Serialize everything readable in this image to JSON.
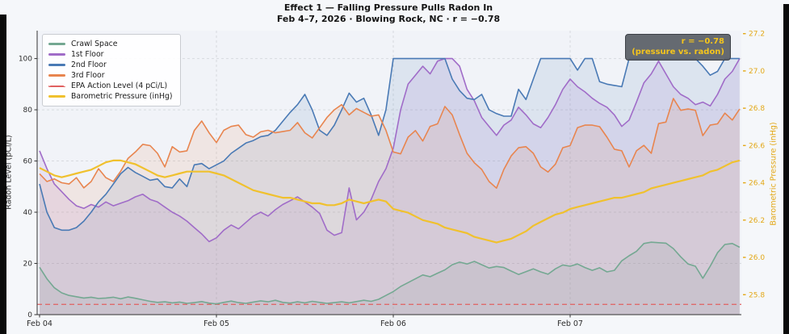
{
  "chart_data": {
    "type": "line",
    "title": "Effect 1 — Falling Pressure Pulls Radon In",
    "subtitle": "Feb 4–7, 2026  ·  Blowing Rock, NC  ·  r = −0.78",
    "ylabel_left": "Radon Level (pCi/L)",
    "ylabel_right": "Barometric Pressure (inHg)",
    "x_unit": "hours since Feb 4 00:00 (hourly samples)",
    "x_start_hour": 0,
    "x_step_hours": 1,
    "n_points": 96,
    "axes": {
      "left": {
        "ticks": [
          0,
          20,
          40,
          60,
          80,
          100
        ],
        "range": [
          0,
          110.9
        ]
      },
      "right": {
        "ticks": [
          25.8,
          26.0,
          26.2,
          26.4,
          26.6,
          26.8,
          27.0,
          27.2
        ],
        "range": [
          25.693,
          27.216
        ]
      },
      "x": {
        "ticks": [
          {
            "label": "Feb 04",
            "hour": 0
          },
          {
            "label": "Feb 05",
            "hour": 24
          },
          {
            "label": "Feb 06",
            "hour": 48
          },
          {
            "label": "Feb 07",
            "hour": 72
          }
        ],
        "range_hours": [
          0,
          95
        ]
      },
      "grid": true,
      "legend_position": "upper left"
    },
    "epa_action_level": {
      "label": "EPA Action Level (4 pCi/L)",
      "value": 4,
      "color": "#e06060"
    },
    "series": [
      {
        "name": "Crawl Space",
        "axis": "left",
        "color": "#74a892",
        "fill_opacity": 0.13,
        "values": [
          18.5,
          14,
          10.5,
          8.5,
          7.5,
          7,
          6.5,
          6.8,
          6.3,
          6.5,
          6.8,
          6.2,
          6.9,
          6.4,
          5.8,
          5.2,
          4.8,
          5,
          4.6,
          4.9,
          4.4,
          4.7,
          5.1,
          4.5,
          4.2,
          4.8,
          5.3,
          4.7,
          4.4,
          4.9,
          5.4,
          5,
          5.6,
          4.8,
          4.5,
          5,
          4.6,
          5.2,
          4.8,
          4.4,
          4.7,
          5,
          4.6,
          5.1,
          5.6,
          5.2,
          6,
          7.5,
          9,
          11,
          12.5,
          14,
          15.5,
          14.8,
          16.2,
          17.5,
          19.5,
          20.5,
          19.8,
          20.8,
          19.5,
          18.2,
          18.8,
          18.4,
          17,
          15.7,
          16.8,
          17.9,
          16.7,
          15.8,
          17.9,
          19.4,
          18.9,
          19.8,
          18.4,
          17.3,
          18.3,
          16.7,
          17.3,
          21,
          23,
          24.7,
          27.8,
          28.3,
          28.1,
          27.9,
          25.8,
          22.6,
          19.8,
          18.9,
          14.2,
          18.9,
          24.2,
          27.4,
          27.8,
          26.3
        ]
      },
      {
        "name": "1st Floor",
        "axis": "left",
        "color": "#a06cc8",
        "fill_opacity": 0.13,
        "values": [
          64,
          57,
          51,
          48,
          45,
          42.5,
          41.5,
          43,
          42,
          44,
          42.5,
          43.5,
          44.5,
          46,
          47,
          45,
          44,
          42,
          40,
          38.5,
          36.5,
          34,
          31.5,
          28.5,
          30,
          33,
          35,
          33.5,
          36,
          38.5,
          40,
          38.5,
          41,
          43,
          44.5,
          46,
          44,
          42,
          39.5,
          33,
          31,
          32,
          49.5,
          37,
          40,
          45,
          52,
          57,
          65,
          80,
          90,
          93.5,
          97,
          94,
          99,
          100,
          100,
          97,
          88,
          83.5,
          77,
          73.5,
          70,
          74,
          76,
          81,
          78,
          74.5,
          73,
          77,
          82,
          88,
          92,
          89,
          87,
          84.5,
          82.5,
          81,
          78,
          73.5,
          76,
          83,
          90.5,
          94,
          99,
          94,
          89,
          86,
          84.5,
          82,
          83,
          81.5,
          86,
          92,
          95,
          100
        ]
      },
      {
        "name": "2nd Floor",
        "axis": "left",
        "color": "#4a7ab5",
        "fill_opacity": 0.12,
        "values": [
          51,
          40,
          34,
          33,
          33,
          34,
          36.5,
          40,
          44,
          47,
          51,
          55,
          57.5,
          55.5,
          54,
          52.5,
          53,
          50,
          49.5,
          53,
          50,
          58.5,
          59,
          57,
          58.5,
          60,
          63,
          65,
          67,
          68,
          69.5,
          70,
          72,
          75.5,
          79,
          82,
          86,
          80,
          72,
          70,
          74,
          80,
          86.5,
          83,
          84.5,
          78,
          70,
          80,
          100,
          100,
          100,
          100,
          100,
          100,
          100,
          100,
          92,
          87.5,
          84.5,
          84,
          86,
          80,
          78.5,
          77.5,
          77.5,
          88,
          84,
          92,
          100,
          100,
          100,
          100,
          100,
          95.5,
          100,
          100,
          91,
          90,
          89.5,
          89,
          100,
          100,
          100,
          100,
          100,
          100,
          100,
          100,
          100,
          100,
          97,
          93.5,
          95,
          100,
          100,
          100
        ]
      },
      {
        "name": "3rd Floor",
        "axis": "left",
        "color": "#e8854f",
        "fill_opacity": 0.12,
        "values": [
          55,
          52,
          53,
          51.5,
          51,
          53.5,
          49.5,
          52,
          57,
          53.5,
          52,
          56,
          61,
          63.5,
          66.5,
          66,
          63,
          57.7,
          65.6,
          63.5,
          64,
          71.9,
          75.6,
          71,
          67.2,
          72,
          73.5,
          74,
          70.3,
          69.3,
          71.4,
          72,
          71,
          71.5,
          72,
          75,
          71,
          69,
          73,
          77,
          80,
          82,
          78,
          80.5,
          79,
          77.5,
          78,
          72,
          63.5,
          62.8,
          69.3,
          71.9,
          67.8,
          73.5,
          74.5,
          81.3,
          78,
          70.3,
          63,
          59.3,
          56.7,
          52,
          49.4,
          56.7,
          62,
          65.2,
          65.6,
          63,
          57.7,
          55.7,
          58.8,
          65.2,
          66,
          73,
          74,
          74,
          73.4,
          69.3,
          64.6,
          64,
          57.7,
          64,
          66.1,
          63,
          74.6,
          75.2,
          84.4,
          79.8,
          80.3,
          79.8,
          69.9,
          74,
          74.5,
          78.7,
          76,
          80.3
        ]
      },
      {
        "name": "Barometric Pressure (inHg)",
        "axis": "right",
        "color": "#f0c12e",
        "fill_opacity": 0,
        "values": [
          26.48,
          26.46,
          26.44,
          26.43,
          26.44,
          26.45,
          26.46,
          26.47,
          26.49,
          26.51,
          26.52,
          26.52,
          26.51,
          26.5,
          26.48,
          26.46,
          26.44,
          26.43,
          26.44,
          26.45,
          26.46,
          26.46,
          26.46,
          26.46,
          26.45,
          26.44,
          26.42,
          26.4,
          26.38,
          26.36,
          26.35,
          26.34,
          26.33,
          26.32,
          26.32,
          26.31,
          26.3,
          26.29,
          26.29,
          26.28,
          26.28,
          26.29,
          26.31,
          26.3,
          26.29,
          26.3,
          26.31,
          26.3,
          26.26,
          26.25,
          26.24,
          26.22,
          26.2,
          26.19,
          26.18,
          26.16,
          26.15,
          26.14,
          26.13,
          26.11,
          26.1,
          26.09,
          26.08,
          26.09,
          26.1,
          26.12,
          26.14,
          26.17,
          26.19,
          26.21,
          26.23,
          26.24,
          26.26,
          26.27,
          26.28,
          26.29,
          26.3,
          26.31,
          26.32,
          26.32,
          26.33,
          26.34,
          26.35,
          26.37,
          26.38,
          26.39,
          26.4,
          26.41,
          26.42,
          26.43,
          26.44,
          26.46,
          26.47,
          26.49,
          26.51,
          26.52
        ]
      }
    ]
  },
  "legend": {
    "items": [
      {
        "label": "Crawl Space",
        "color": "#74a892",
        "dash": false
      },
      {
        "label": "1st Floor",
        "color": "#a06cc8",
        "dash": false
      },
      {
        "label": "2nd Floor",
        "color": "#4a7ab5",
        "dash": false
      },
      {
        "label": "3rd Floor",
        "color": "#e8854f",
        "dash": false
      },
      {
        "label": "EPA Action Level (4 pCi/L)",
        "color": "#e06060",
        "dash": true
      },
      {
        "label": "Barometric Pressure (inHg)",
        "color": "#f0c12e",
        "dash": false
      }
    ]
  },
  "annotation": {
    "line1": "r = −0.78",
    "line2": "(pressure vs. radon)"
  },
  "correlation_r": -0.78,
  "colors": {
    "figure_bg": "#f5f7fa",
    "plot_bg": "#f1f3f8",
    "grid": "#d7dade",
    "spine": "#333333",
    "tick_label": "#2d2d2d",
    "right_axis": "#e3a817",
    "annotation_bg": "#5a5f66",
    "annotation_text": "#f5c51c"
  }
}
